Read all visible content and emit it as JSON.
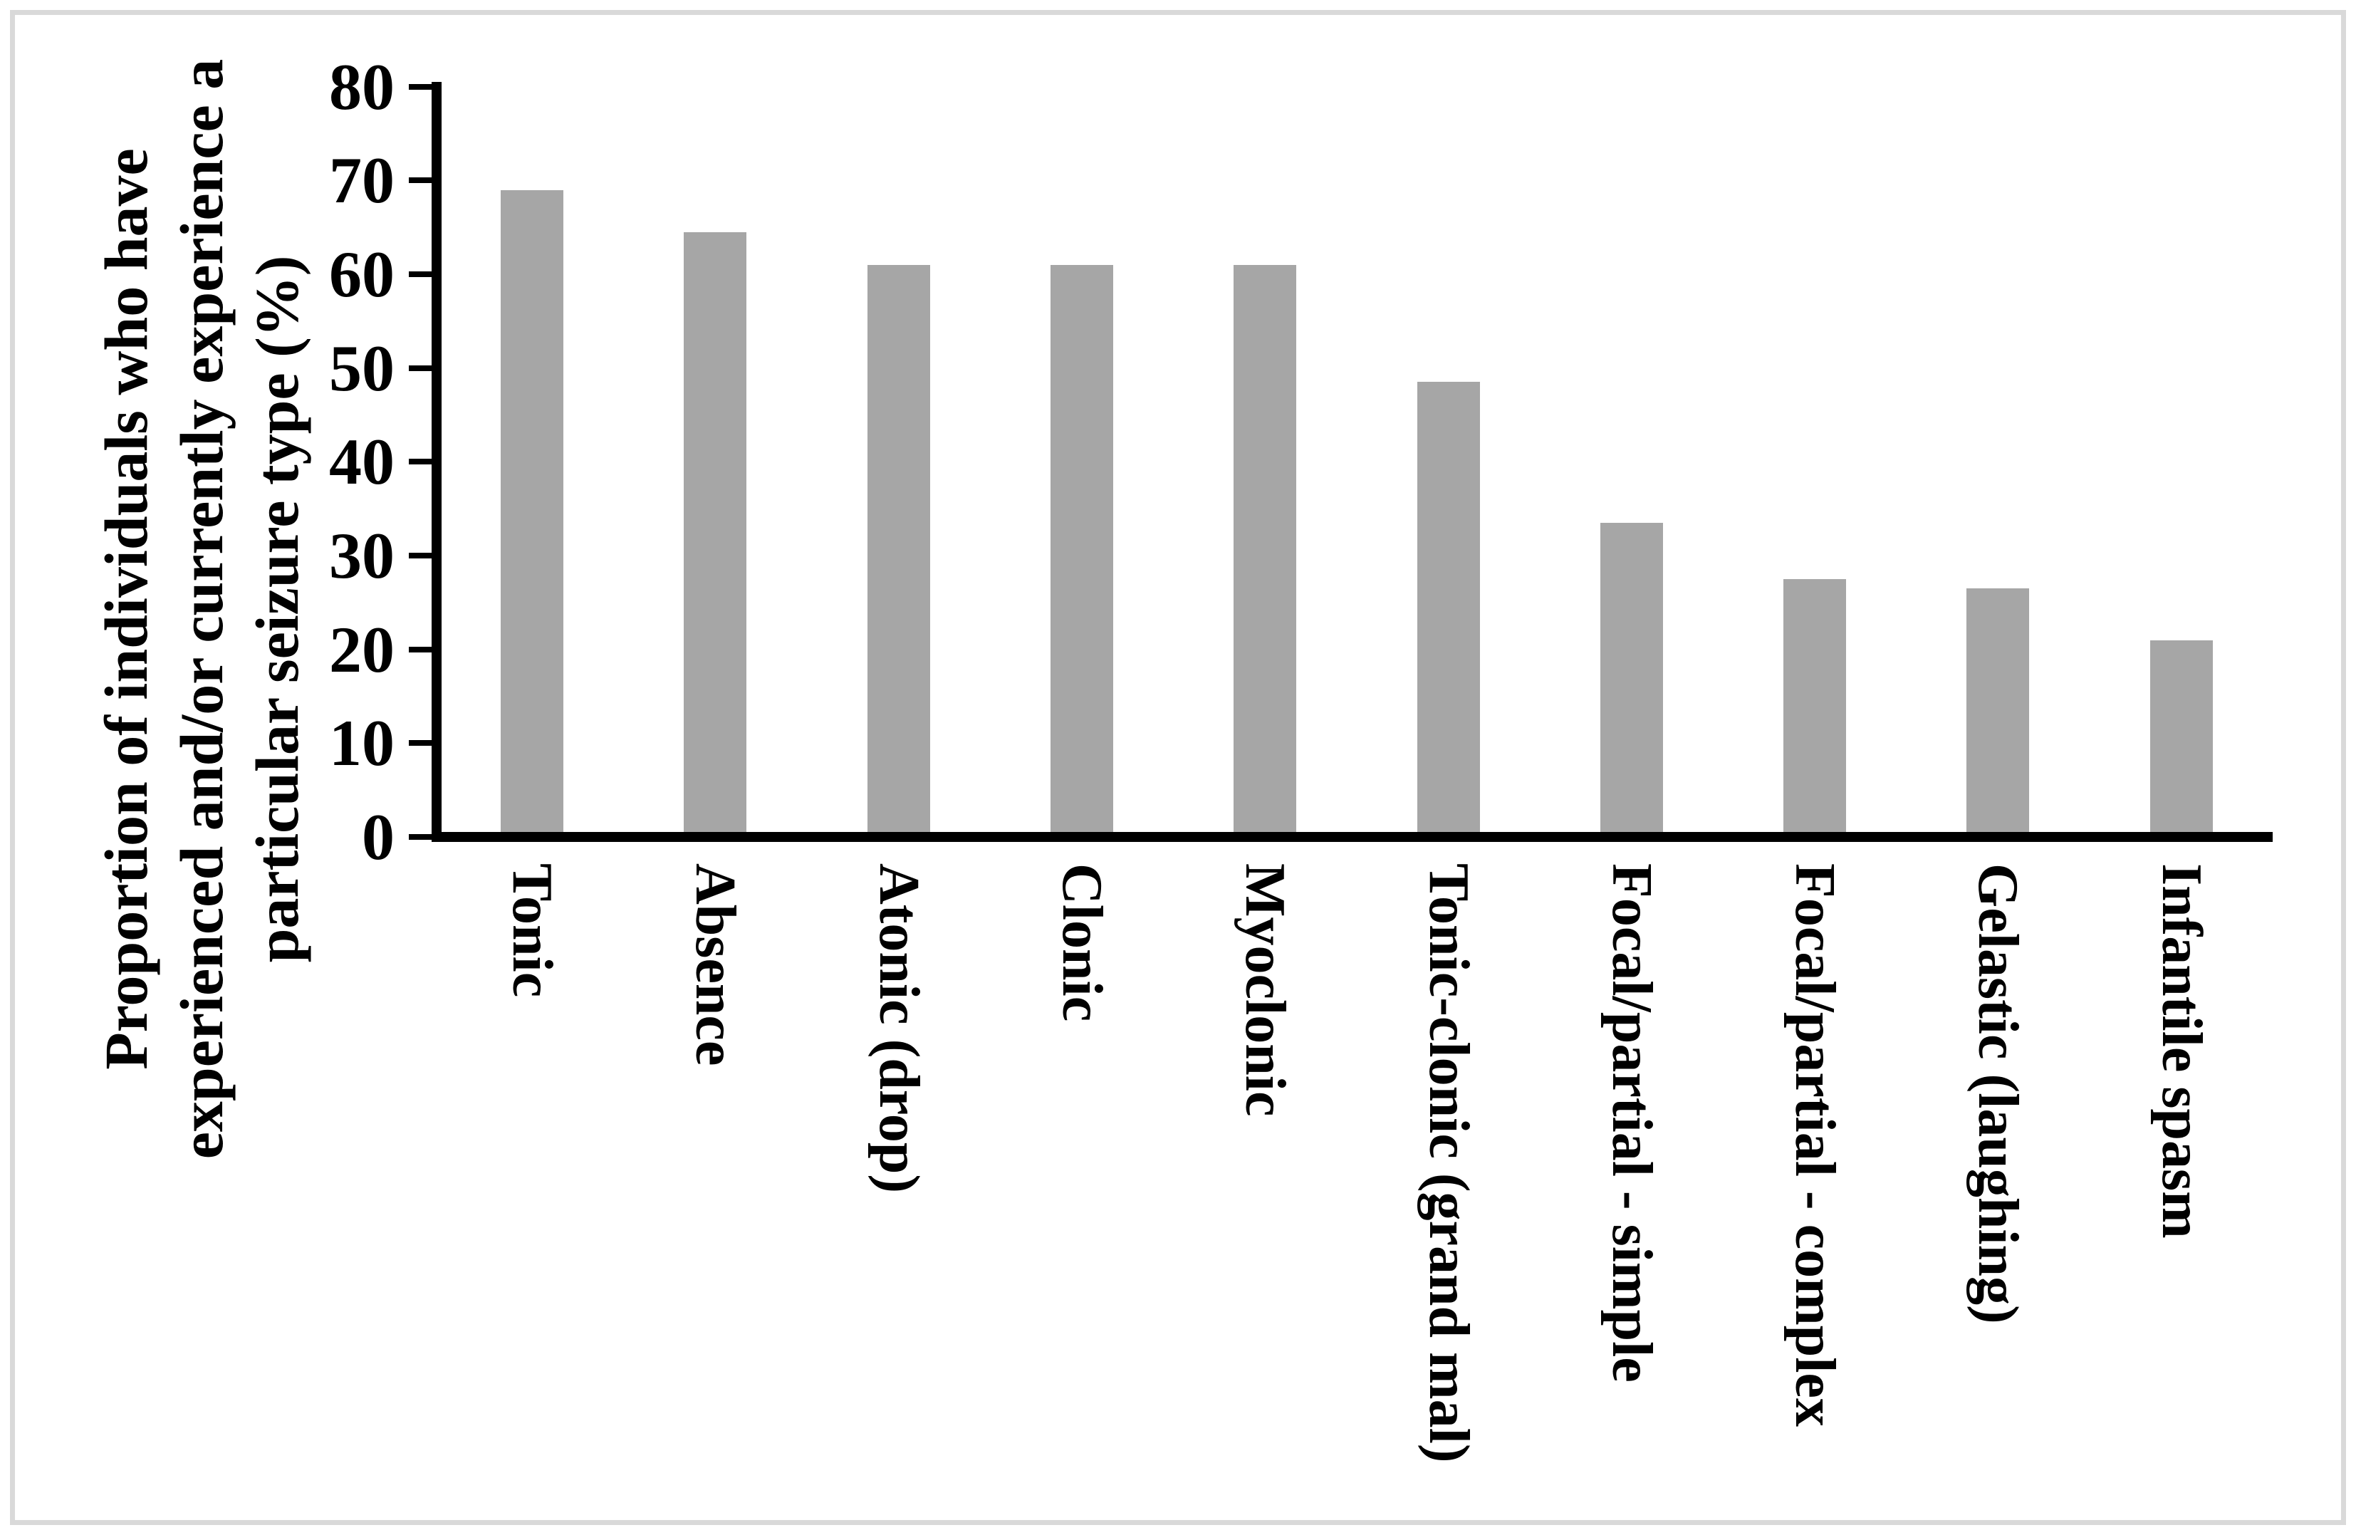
{
  "figure": {
    "background_color": "#ffffff",
    "border_color": "#d9d9d9"
  },
  "chart_data": {
    "type": "bar",
    "title": "",
    "categories": [
      "Tonic",
      "Absence",
      "Atonic (drop)",
      "Clonic",
      "Myoclonic",
      "Tonic-clonic (grand mal)",
      "Focal/partial - simple",
      "Focal/partial - complex",
      "Gelastic (laughing)",
      "Infantile spasm"
    ],
    "values": [
      69,
      64.5,
      61,
      61,
      61,
      48.5,
      33.5,
      27.5,
      26.5,
      21
    ],
    "xlabel": "",
    "ylabel": "Proportion of individuals who have experienced and/or currently experience a particular seizure type (%)",
    "ylabel_lines": [
      "Proportion of individuals who have",
      "experienced and/or currently experience a",
      "particular seizure type (%)"
    ],
    "ylim": [
      0,
      80
    ],
    "yticks": [
      0,
      10,
      20,
      30,
      40,
      50,
      60,
      70,
      80
    ],
    "bar_color": "#a6a6a6",
    "axis_color": "#000000",
    "grid": false,
    "legend_position": "none"
  }
}
